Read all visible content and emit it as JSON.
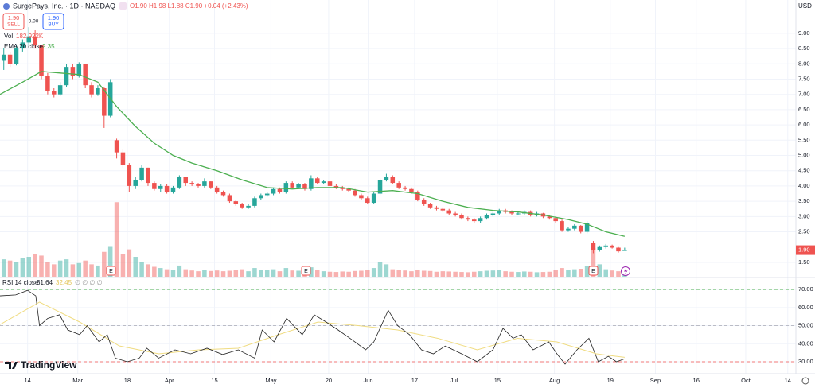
{
  "chart_data": {
    "type": "candlestick",
    "title": "SurgePays, Inc. · 1D · NASDAQ",
    "ohlc_legend": "O1.90 H1.98 L1.88 C1.90 +0.04 (+2.43%)",
    "sell_price": "1.90",
    "sell_label": "SELL",
    "spread": "0.00",
    "buy_price": "1.90",
    "buy_label": "BUY",
    "currency": "USD",
    "brand": "TradingView",
    "up_color": "#26a69a",
    "down_color": "#ef5350",
    "xlim": [
      -0.6,
      126.3
    ],
    "xticks": [
      {
        "value": 3.8,
        "label": "14"
      },
      {
        "value": 11.8,
        "label": "Mar"
      },
      {
        "value": 19.7,
        "label": "18"
      },
      {
        "value": 26.4,
        "label": "Apr"
      },
      {
        "value": 33.6,
        "label": "15"
      },
      {
        "value": 42.6,
        "label": "May"
      },
      {
        "value": 51.8,
        "label": "20"
      },
      {
        "value": 58.1,
        "label": "Jun"
      },
      {
        "value": 65.5,
        "label": "17"
      },
      {
        "value": 71.8,
        "label": "Jul"
      },
      {
        "value": 78.7,
        "label": "15"
      },
      {
        "value": 87.8,
        "label": "Aug"
      },
      {
        "value": 96.7,
        "label": "19"
      },
      {
        "value": 103.9,
        "label": "Sep"
      },
      {
        "value": 110.4,
        "label": "16"
      },
      {
        "value": 118.3,
        "label": "Oct"
      },
      {
        "value": 125.0,
        "label": "14"
      }
    ],
    "ylim": [
      1.03,
      10.09
    ],
    "yticks": [
      {
        "value": 1.5,
        "label": "1.50"
      },
      {
        "value": 2.5,
        "label": "2.50"
      },
      {
        "value": 3,
        "label": "3.00"
      },
      {
        "value": 3.5,
        "label": "3.50"
      },
      {
        "value": 4,
        "label": "4.00"
      },
      {
        "value": 4.5,
        "label": "4.50"
      },
      {
        "value": 5,
        "label": "5.00"
      },
      {
        "value": 5.5,
        "label": "5.50"
      },
      {
        "value": 6,
        "label": "6.00"
      },
      {
        "value": 6.5,
        "label": "6.50"
      },
      {
        "value": 7,
        "label": "7.00"
      },
      {
        "value": 7.5,
        "label": "7.50"
      },
      {
        "value": 8,
        "label": "8.00"
      },
      {
        "value": 8.5,
        "label": "8.50"
      },
      {
        "value": 9,
        "label": "9.00"
      }
    ],
    "grid": true,
    "last_price": {
      "value": 1.9,
      "label": "1.90"
    },
    "candles": [
      [
        8.1,
        8.5,
        7.8,
        8.3
      ],
      [
        8.3,
        8.4,
        7.9,
        8.0
      ],
      [
        8.0,
        8.6,
        7.95,
        8.5
      ],
      [
        8.5,
        8.8,
        8.4,
        8.7
      ],
      [
        8.7,
        9.2,
        8.6,
        8.9
      ],
      [
        8.9,
        9.1,
        8.5,
        8.6
      ],
      [
        8.6,
        8.6,
        7.5,
        7.6
      ],
      [
        7.6,
        7.7,
        7.0,
        7.1
      ],
      [
        7.1,
        7.2,
        6.9,
        7.0
      ],
      [
        7.0,
        7.4,
        6.95,
        7.3
      ],
      [
        7.3,
        8.0,
        7.25,
        7.9
      ],
      [
        7.9,
        8.0,
        7.5,
        7.6
      ],
      [
        7.6,
        8.05,
        7.55,
        8.0
      ],
      [
        8.0,
        8.0,
        7.2,
        7.3
      ],
      [
        7.3,
        7.4,
        6.9,
        7.0
      ],
      [
        7.0,
        7.3,
        6.95,
        7.2
      ],
      [
        7.2,
        7.25,
        5.9,
        6.3
      ],
      [
        6.3,
        7.5,
        6.25,
        7.4
      ],
      [
        5.5,
        5.55,
        4.9,
        5.1
      ],
      [
        5.1,
        5.2,
        4.6,
        4.7
      ],
      [
        4.7,
        4.75,
        3.8,
        4.0
      ],
      [
        4.0,
        4.3,
        3.9,
        4.2
      ],
      [
        4.2,
        4.7,
        4.15,
        4.6
      ],
      [
        4.6,
        4.6,
        4.0,
        4.1
      ],
      [
        4.1,
        4.15,
        3.85,
        3.9
      ],
      [
        3.9,
        4.05,
        3.8,
        4.0
      ],
      [
        4.0,
        4.05,
        3.75,
        3.8
      ],
      [
        3.8,
        4.0,
        3.75,
        3.95
      ],
      [
        3.95,
        4.35,
        3.9,
        4.3
      ],
      [
        4.3,
        4.3,
        4.0,
        4.1
      ],
      [
        4.1,
        4.15,
        4.0,
        4.05
      ],
      [
        4.05,
        4.1,
        3.95,
        4.0
      ],
      [
        4.0,
        4.25,
        3.95,
        4.15
      ],
      [
        4.15,
        4.15,
        3.9,
        3.95
      ],
      [
        3.95,
        4.0,
        3.75,
        3.8
      ],
      [
        3.8,
        3.85,
        3.65,
        3.7
      ],
      [
        3.7,
        3.75,
        3.45,
        3.5
      ],
      [
        3.5,
        3.55,
        3.35,
        3.4
      ],
      [
        3.4,
        3.45,
        3.25,
        3.3
      ],
      [
        3.3,
        3.4,
        3.25,
        3.35
      ],
      [
        3.35,
        3.65,
        3.3,
        3.6
      ],
      [
        3.6,
        3.75,
        3.55,
        3.7
      ],
      [
        3.7,
        3.8,
        3.65,
        3.75
      ],
      [
        3.75,
        3.95,
        3.7,
        3.9
      ],
      [
        3.9,
        3.95,
        3.75,
        3.8
      ],
      [
        3.8,
        4.15,
        3.75,
        4.1
      ],
      [
        4.1,
        4.15,
        3.9,
        3.95
      ],
      [
        3.95,
        4.1,
        3.9,
        4.05
      ],
      [
        4.05,
        4.1,
        3.85,
        3.9
      ],
      [
        3.9,
        4.35,
        3.85,
        4.25
      ],
      [
        4.25,
        4.3,
        4.05,
        4.1
      ],
      [
        4.1,
        4.2,
        4.05,
        4.15
      ],
      [
        4.15,
        4.2,
        3.95,
        4.0
      ],
      [
        4.0,
        4.05,
        3.9,
        3.95
      ],
      [
        3.95,
        4.0,
        3.85,
        3.9
      ],
      [
        3.9,
        3.95,
        3.8,
        3.85
      ],
      [
        3.85,
        3.9,
        3.65,
        3.7
      ],
      [
        3.7,
        3.75,
        3.55,
        3.6
      ],
      [
        3.6,
        3.65,
        3.4,
        3.45
      ],
      [
        3.45,
        3.8,
        3.4,
        3.75
      ],
      [
        3.75,
        4.25,
        3.7,
        4.2
      ],
      [
        4.2,
        4.4,
        4.15,
        4.3
      ],
      [
        4.3,
        4.35,
        4.05,
        4.1
      ],
      [
        4.1,
        4.15,
        3.9,
        3.95
      ],
      [
        3.95,
        4.0,
        3.85,
        3.9
      ],
      [
        3.9,
        3.95,
        3.75,
        3.8
      ],
      [
        3.8,
        3.85,
        3.5,
        3.55
      ],
      [
        3.55,
        3.6,
        3.35,
        3.4
      ],
      [
        3.4,
        3.45,
        3.25,
        3.3
      ],
      [
        3.3,
        3.35,
        3.2,
        3.25
      ],
      [
        3.25,
        3.3,
        3.15,
        3.2
      ],
      [
        3.2,
        3.25,
        3.05,
        3.1
      ],
      [
        3.1,
        3.15,
        3.0,
        3.05
      ],
      [
        3.05,
        3.1,
        2.9,
        2.95
      ],
      [
        2.95,
        3.0,
        2.85,
        2.9
      ],
      [
        2.9,
        2.95,
        2.8,
        2.85
      ],
      [
        2.85,
        3.0,
        2.8,
        2.95
      ],
      [
        2.95,
        3.1,
        2.9,
        3.05
      ],
      [
        3.05,
        3.15,
        3.0,
        3.1
      ],
      [
        3.1,
        3.25,
        3.05,
        3.2
      ],
      [
        3.2,
        3.25,
        3.1,
        3.15
      ],
      [
        3.15,
        3.2,
        3.05,
        3.1
      ],
      [
        3.1,
        3.15,
        3.05,
        3.1
      ],
      [
        3.1,
        3.2,
        3.05,
        3.15
      ],
      [
        3.15,
        3.2,
        3.0,
        3.05
      ],
      [
        3.05,
        3.15,
        3.0,
        3.1
      ],
      [
        3.1,
        3.12,
        2.95,
        3.0
      ],
      [
        3.0,
        3.05,
        2.9,
        2.95
      ],
      [
        2.95,
        3.0,
        2.8,
        2.85
      ],
      [
        2.85,
        2.9,
        2.5,
        2.55
      ],
      [
        2.55,
        2.65,
        2.5,
        2.6
      ],
      [
        2.6,
        2.75,
        2.55,
        2.7
      ],
      [
        2.7,
        2.72,
        2.45,
        2.5
      ],
      [
        2.5,
        2.85,
        2.45,
        2.8
      ],
      [
        2.15,
        2.2,
        1.8,
        1.9
      ],
      [
        1.9,
        2.05,
        1.85,
        2.0
      ],
      [
        2.0,
        2.1,
        1.95,
        2.05
      ],
      [
        2.05,
        2.08,
        1.95,
        1.98
      ],
      [
        1.98,
        2.0,
        1.82,
        1.86
      ],
      [
        1.9,
        1.98,
        1.88,
        1.9
      ]
    ],
    "volume": {
      "name": "Vol",
      "value_label": "182.922K",
      "vlim": [
        0,
        3200
      ],
      "values": [
        700,
        650,
        600,
        750,
        800,
        900,
        850,
        600,
        500,
        650,
        700,
        500,
        550,
        650,
        500,
        450,
        1000,
        1200,
        3000,
        900,
        1100,
        800,
        600,
        500,
        400,
        350,
        300,
        280,
        450,
        300,
        250,
        220,
        260,
        230,
        250,
        220,
        240,
        260,
        300,
        220,
        350,
        280,
        260,
        300,
        220,
        350,
        250,
        240,
        230,
        380,
        260,
        220,
        200,
        190,
        210,
        200,
        230,
        240,
        260,
        350,
        600,
        500,
        300,
        280,
        250,
        220,
        260,
        240,
        230,
        200,
        220,
        210,
        200,
        190,
        180,
        200,
        220,
        240,
        250,
        260,
        220,
        200,
        190,
        210,
        200,
        180,
        190,
        200,
        260,
        350,
        280,
        300,
        320,
        420,
        1150,
        500,
        300,
        250,
        220,
        182.922
      ]
    },
    "ema": {
      "name": "EMA 20 close",
      "color": "#4caf50",
      "x": [
        -0.6,
        3,
        6,
        9,
        12,
        15,
        18,
        21,
        24,
        27,
        30,
        34,
        38,
        42,
        46,
        50,
        54,
        58,
        62,
        66,
        70,
        74,
        78,
        82,
        86,
        90,
        93,
        96,
        99
      ],
      "values": [
        7.0,
        7.4,
        7.75,
        7.7,
        7.65,
        7.4,
        6.6,
        5.95,
        5.4,
        5.0,
        4.75,
        4.5,
        4.2,
        3.95,
        3.9,
        3.95,
        3.95,
        3.8,
        3.85,
        3.75,
        3.5,
        3.3,
        3.2,
        3.15,
        3.05,
        2.9,
        2.75,
        2.5,
        2.35
      ]
    },
    "rsi": {
      "name": "RSI 14 close",
      "color": "#222222",
      "ylim": [
        23.4,
        76.2
      ],
      "yticks": [
        {
          "value": 30,
          "label": "30.00"
        },
        {
          "value": 40,
          "label": "40.00"
        },
        {
          "value": 50,
          "label": "50.00"
        },
        {
          "value": 60,
          "label": "60.00"
        },
        {
          "value": 70,
          "label": "70.00"
        }
      ],
      "bands": [
        70,
        50,
        30
      ],
      "x": [
        -0.6,
        1.9,
        3.8,
        5.1,
        5.7,
        7.0,
        8.9,
        10.2,
        12.1,
        13.3,
        15.2,
        16.5,
        17.8,
        19.7,
        21.6,
        22.8,
        24.7,
        27.3,
        29.8,
        32.4,
        34.9,
        37.4,
        40.0,
        41.2,
        43.1,
        45.1,
        47.6,
        49.5,
        51.4,
        53.3,
        55.2,
        57.7,
        59.0,
        61.3,
        62.8,
        64.7,
        66.6,
        68.5,
        70.4,
        73.0,
        75.5,
        78.0,
        79.6,
        81.2,
        82.5,
        84.4,
        86.9,
        88.2,
        89.5,
        91.4,
        93.3,
        94.8,
        96.4,
        97.7,
        99
      ],
      "values": [
        66.5,
        67,
        69.5,
        66.5,
        50,
        54,
        56,
        47.6,
        45,
        50,
        41,
        45,
        32,
        30,
        32,
        37.5,
        32,
        36.6,
        34.4,
        37.5,
        34,
        36.6,
        32,
        47.6,
        41,
        54,
        45,
        56,
        52,
        47.6,
        43,
        36.6,
        41,
        58.5,
        50,
        45,
        36.6,
        34.4,
        38.7,
        34.4,
        30,
        36.6,
        48.5,
        43,
        45,
        36.6,
        41,
        34.4,
        28.7,
        36.6,
        43,
        30,
        33,
        30,
        31.64
      ],
      "ma_color": "#f0dc82",
      "ma_x": [
        -0.6,
        5.7,
        12.1,
        18.4,
        24.7,
        31.1,
        37.4,
        43.8,
        50.1,
        56.5,
        62.8,
        69.2,
        75.5,
        81.9,
        88.2,
        94.5,
        99
      ],
      "ma_values": [
        50.6,
        63,
        52,
        38.8,
        34.4,
        36.6,
        37.5,
        45,
        52,
        50,
        47.6,
        43,
        36.6,
        43,
        41,
        34.4,
        32.45
      ]
    }
  }
}
